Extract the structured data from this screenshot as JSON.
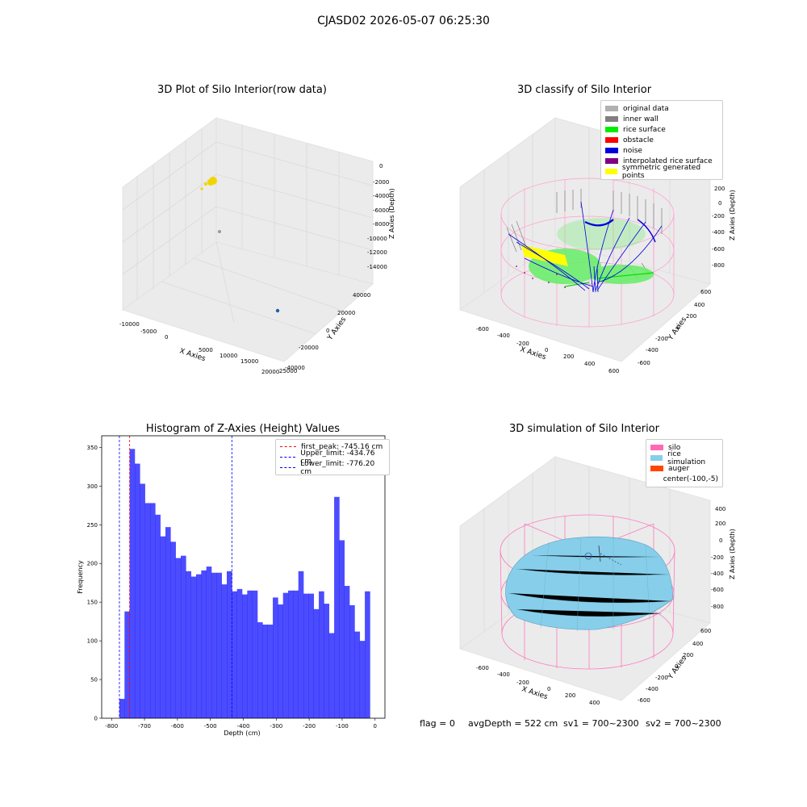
{
  "suptitle": "CJASD02 2026-05-07 06:25:30",
  "panels": {
    "raw": {
      "title": "3D Plot of Silo Interior(row data)",
      "xlabel": "X Axies",
      "ylabel": "Y Axies",
      "zlabel": "Z Axies (Depth)",
      "xticks": [
        "-10000",
        "-5000",
        "0",
        "5000",
        "10000",
        "15000",
        "20000",
        "25000"
      ],
      "yticks": [
        "-40000",
        "-20000",
        "0",
        "20000",
        "40000"
      ],
      "zticks": [
        "0",
        "-2000",
        "-4000",
        "-6000",
        "-8000",
        "-10000",
        "-12000",
        "-14000"
      ]
    },
    "classify": {
      "title": "3D classify of Silo Interior",
      "xlabel": "X Axies",
      "ylabel": "Y Axies",
      "zlabel": "Z Axies (Depth)",
      "xticks": [
        "-600",
        "-400",
        "-200",
        "0",
        "200",
        "400",
        "600"
      ],
      "yticks": [
        "600",
        "400",
        "200",
        "0",
        "-200",
        "-400",
        "-600"
      ],
      "zticks": [
        "200",
        "0",
        "-200",
        "-400",
        "-600",
        "-800"
      ],
      "legend": [
        {
          "label": "original data",
          "color": "#b0b0b0"
        },
        {
          "label": "inner wall",
          "color": "#808080"
        },
        {
          "label": "rice surface",
          "color": "#00ee00"
        },
        {
          "label": "obstacle",
          "color": "#ff0000"
        },
        {
          "label": "noise",
          "color": "#0000dd"
        },
        {
          "label": "interpolated rice surface",
          "color": "#800080"
        },
        {
          "label": "symmetric generated points",
          "color": "#ffff00"
        }
      ]
    },
    "simulation": {
      "title": "3D simulation of Silo Interior",
      "xlabel": "X Axies",
      "ylabel": "Y Axies",
      "zlabel": "Z Axies (Depth)",
      "xticks": [
        "-600",
        "-400",
        "-200",
        "0",
        "200",
        "400"
      ],
      "yticks": [
        "600",
        "400",
        "200",
        "0",
        "-200",
        "-400",
        "-600"
      ],
      "zticks": [
        "400",
        "200",
        "0",
        "-200",
        "-400",
        "-600",
        "-800"
      ],
      "legend": [
        {
          "label": "silo",
          "color": "#ff69b4"
        },
        {
          "label": "rice simulation",
          "color": "#87ceeb"
        },
        {
          "label": "auger",
          "color": "#ff4500"
        },
        {
          "label": "center(-100,-5)",
          "color": ""
        }
      ]
    }
  },
  "chart_data": [
    {
      "type": "bar",
      "title": "Histogram of Z-Axies (Height) Values",
      "xlabel": "Depth (cm)",
      "ylabel": "Frequency",
      "bin_start": -776.2,
      "bin_width": 15.524,
      "values": [
        25,
        138,
        348,
        329,
        303,
        278,
        278,
        263,
        235,
        247,
        228,
        207,
        210,
        190,
        183,
        186,
        191,
        196,
        188,
        188,
        173,
        190,
        164,
        167,
        160,
        165,
        165,
        124,
        121,
        121,
        156,
        147,
        162,
        165,
        165,
        190,
        161,
        161,
        141,
        164,
        148,
        110,
        286,
        230,
        171,
        146,
        112,
        100,
        164
      ],
      "color": "#0000ff",
      "xlim": [
        -830,
        30
      ],
      "ylim": [
        0,
        365
      ],
      "xticks": [
        -800,
        -700,
        -600,
        -500,
        -400,
        -300,
        -200,
        -100,
        0
      ],
      "yticks": [
        0,
        50,
        100,
        150,
        200,
        250,
        300,
        350
      ],
      "lines": [
        {
          "label": "first_peak: -745.16 cm",
          "x": -745.16,
          "color": "#ff0000"
        },
        {
          "label": "Upper_limit: -434.76 cm",
          "x": -434.76,
          "color": "#0000ff"
        },
        {
          "label": "Lower_limit: -776.20 cm",
          "x": -776.2,
          "color": "#0000ff"
        }
      ],
      "legend_position": "top-right"
    }
  ],
  "footer": {
    "flag": "flag = 0",
    "avg": "avgDepth = 522 cm",
    "sv1": "sv1 = 700~2300",
    "sv2": "sv2 = 700~2300"
  }
}
